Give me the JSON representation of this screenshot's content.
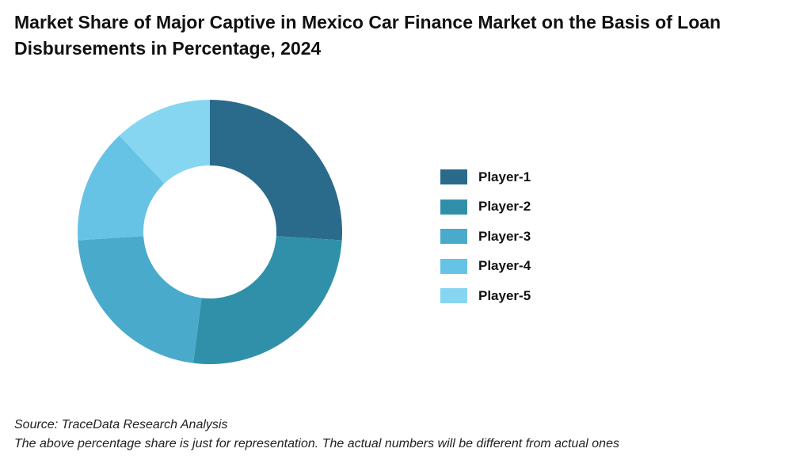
{
  "title": "Market Share of Major Captive in Mexico Car Finance Market on the Basis of Loan Disbursements in Percentage, 2024",
  "source": "Source: TraceData Research Analysis",
  "note": "The above percentage share is just for representation. The actual numbers will be different from actual ones",
  "chart_data": {
    "type": "pie",
    "subtype": "donut",
    "categories": [
      "Player-1",
      "Player-2",
      "Player-3",
      "Player-4",
      "Player-5"
    ],
    "values": [
      26,
      26,
      22,
      14,
      12
    ],
    "colors": [
      "#2a6a8b",
      "#3090aa",
      "#4aaacb",
      "#66c3e6",
      "#86d6f1"
    ],
    "legend_position": "right"
  }
}
